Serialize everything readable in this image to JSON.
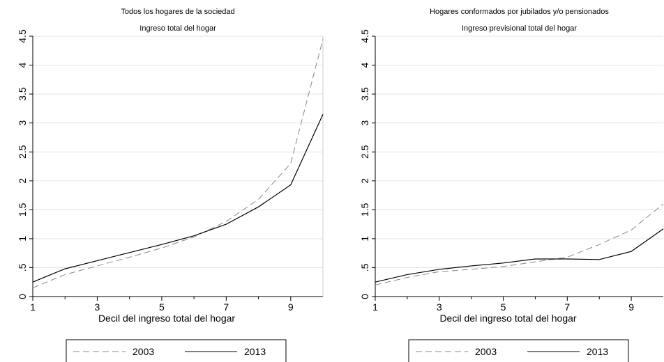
{
  "chart_data": [
    {
      "type": "line",
      "title": "Todos los hogares de la sociedad",
      "subtitle": "Ingreso total del hogar",
      "x_label": "Decil del ingreso total del hogar",
      "x": [
        1,
        2,
        3,
        4,
        5,
        6,
        7,
        8,
        9,
        10
      ],
      "xlim": [
        1,
        10
      ],
      "xticks": [
        1,
        3,
        5,
        7,
        9
      ],
      "ylim": [
        0,
        4.5
      ],
      "yticks": [
        0,
        {
          "value": 0.5,
          "label": ".5"
        },
        1,
        1.5,
        2,
        2.5,
        3,
        3.5,
        4,
        4.5
      ],
      "grid": true,
      "series": [
        {
          "name": "2003",
          "color": "#888888",
          "dashed": true,
          "values": [
            0.15,
            0.38,
            0.53,
            0.68,
            0.84,
            1.03,
            1.3,
            1.68,
            2.3,
            4.45
          ]
        },
        {
          "name": "2013",
          "color": "#000000",
          "dashed": false,
          "values": [
            0.25,
            0.48,
            0.62,
            0.76,
            0.9,
            1.05,
            1.25,
            1.55,
            1.93,
            3.15
          ]
        }
      ]
    },
    {
      "type": "line",
      "title": "Hogares conformados por jubilados y/o pensionados",
      "subtitle": "Ingreso previsional total del hogar",
      "x_label": "Decil del ingreso total del hogar",
      "x": [
        1,
        2,
        3,
        4,
        5,
        6,
        7,
        8,
        9,
        10
      ],
      "xlim": [
        1,
        10
      ],
      "xticks": [
        1,
        3,
        5,
        7,
        9
      ],
      "ylim": [
        0,
        4.5
      ],
      "yticks": [
        0,
        {
          "value": 0.5,
          "label": ".5"
        },
        1,
        1.5,
        2,
        2.5,
        3,
        3.5,
        4,
        4.5
      ],
      "grid": true,
      "series": [
        {
          "name": "2003",
          "color": "#888888",
          "dashed": true,
          "values": [
            0.2,
            0.33,
            0.43,
            0.47,
            0.52,
            0.6,
            0.68,
            0.9,
            1.15,
            1.6
          ]
        },
        {
          "name": "2013",
          "color": "#000000",
          "dashed": false,
          "values": [
            0.25,
            0.38,
            0.47,
            0.53,
            0.58,
            0.65,
            0.65,
            0.64,
            0.78,
            1.17
          ]
        }
      ]
    }
  ]
}
